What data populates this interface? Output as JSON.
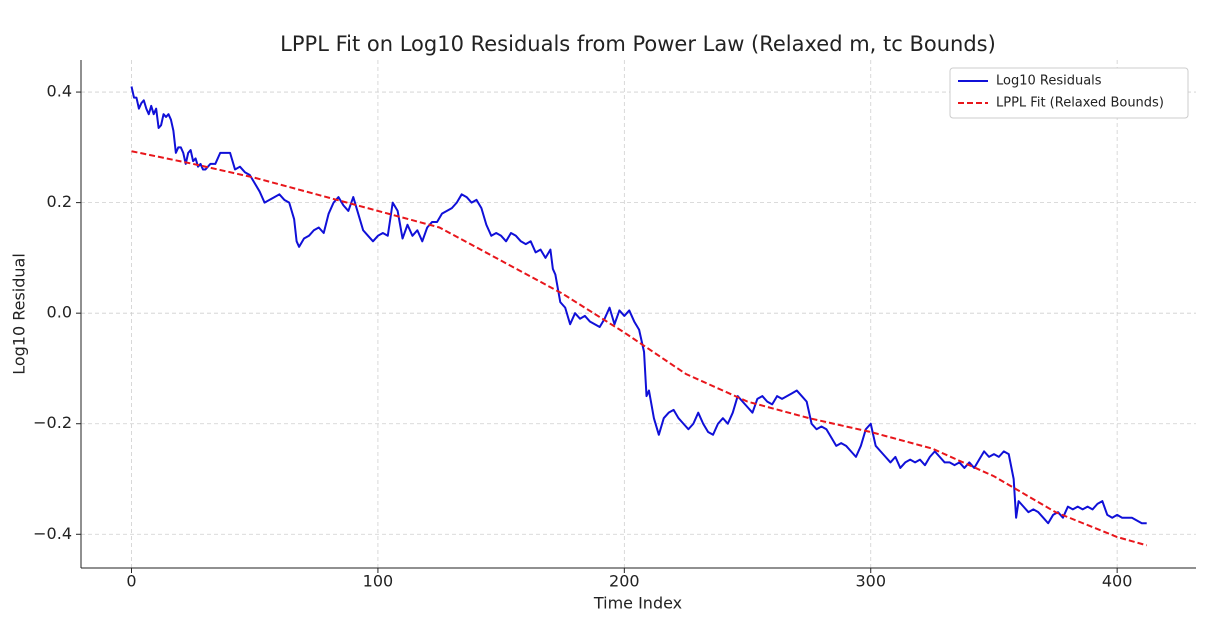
{
  "chart_data": {
    "type": "line",
    "title": "LPPL Fit on Log10 Residuals from Power Law (Relaxed m, tc Bounds)",
    "xlabel": "Time Index",
    "ylabel": "Log10 Residual",
    "xlim": [
      -20.5,
      432
    ],
    "ylim": [
      -0.461,
      0.458
    ],
    "xticks": [
      0,
      100,
      200,
      300,
      400
    ],
    "yticks": [
      {
        "value": -0.4,
        "label": "−0.4"
      },
      {
        "value": -0.2,
        "label": "−0.2"
      },
      {
        "value": 0,
        "label": "0.0"
      },
      0.2,
      0.4
    ],
    "grid": true,
    "legend": "upper right",
    "series": [
      {
        "name": "Log10 Residuals",
        "color": "#1010d8",
        "dashed": false,
        "x": [
          0,
          1,
          2,
          3,
          4,
          5,
          6,
          7,
          8,
          9,
          10,
          11,
          12,
          13,
          14,
          15,
          16,
          17,
          18,
          19,
          20,
          21,
          22,
          23,
          24,
          25,
          26,
          27,
          28,
          29,
          30,
          32,
          34,
          36,
          38,
          40,
          42,
          44,
          46,
          48,
          50,
          52,
          54,
          56,
          58,
          60,
          62,
          64,
          66,
          67,
          68,
          70,
          72,
          74,
          76,
          78,
          80,
          82,
          84,
          86,
          88,
          90,
          92,
          94,
          96,
          98,
          100,
          102,
          104,
          106,
          108,
          110,
          112,
          114,
          116,
          118,
          120,
          122,
          124,
          126,
          128,
          130,
          132,
          134,
          136,
          138,
          140,
          142,
          144,
          146,
          148,
          150,
          152,
          154,
          156,
          158,
          160,
          162,
          164,
          166,
          168,
          170,
          171,
          172,
          174,
          176,
          178,
          180,
          182,
          184,
          186,
          188,
          190,
          192,
          194,
          196,
          198,
          200,
          202,
          204,
          206,
          208,
          209,
          210,
          212,
          214,
          216,
          218,
          220,
          222,
          224,
          226,
          228,
          230,
          232,
          234,
          236,
          238,
          240,
          242,
          244,
          246,
          248,
          250,
          252,
          254,
          256,
          258,
          260,
          262,
          264,
          266,
          268,
          270,
          272,
          274,
          276,
          278,
          280,
          282,
          284,
          286,
          288,
          290,
          292,
          294,
          296,
          298,
          300,
          302,
          304,
          306,
          308,
          310,
          312,
          314,
          316,
          318,
          320,
          322,
          324,
          326,
          328,
          330,
          332,
          334,
          336,
          338,
          340,
          342,
          344,
          346,
          348,
          350,
          352,
          354,
          356,
          358,
          359,
          360,
          362,
          364,
          366,
          368,
          370,
          372,
          374,
          376,
          378,
          380,
          382,
          384,
          386,
          388,
          390,
          392,
          394,
          396,
          398,
          400,
          402,
          404,
          406,
          408,
          410,
          412
        ],
        "values": [
          0.41,
          0.39,
          0.39,
          0.37,
          0.38,
          0.385,
          0.37,
          0.36,
          0.375,
          0.36,
          0.37,
          0.335,
          0.34,
          0.36,
          0.355,
          0.36,
          0.35,
          0.33,
          0.29,
          0.3,
          0.3,
          0.29,
          0.27,
          0.29,
          0.295,
          0.275,
          0.28,
          0.265,
          0.27,
          0.26,
          0.26,
          0.27,
          0.27,
          0.29,
          0.29,
          0.29,
          0.26,
          0.265,
          0.255,
          0.25,
          0.235,
          0.22,
          0.2,
          0.205,
          0.21,
          0.215,
          0.205,
          0.2,
          0.17,
          0.13,
          0.12,
          0.135,
          0.14,
          0.15,
          0.155,
          0.145,
          0.18,
          0.2,
          0.21,
          0.195,
          0.185,
          0.21,
          0.18,
          0.15,
          0.14,
          0.13,
          0.14,
          0.145,
          0.14,
          0.2,
          0.185,
          0.135,
          0.16,
          0.14,
          0.15,
          0.13,
          0.155,
          0.165,
          0.165,
          0.18,
          0.185,
          0.19,
          0.2,
          0.215,
          0.21,
          0.2,
          0.205,
          0.19,
          0.16,
          0.14,
          0.145,
          0.14,
          0.13,
          0.145,
          0.14,
          0.13,
          0.125,
          0.13,
          0.11,
          0.115,
          0.1,
          0.115,
          0.08,
          0.07,
          0.02,
          0.01,
          -0.02,
          0.0,
          -0.01,
          -0.005,
          -0.015,
          -0.02,
          -0.025,
          -0.01,
          0.01,
          -0.02,
          0.005,
          -0.005,
          0.005,
          -0.015,
          -0.03,
          -0.07,
          -0.15,
          -0.14,
          -0.19,
          -0.22,
          -0.19,
          -0.18,
          -0.175,
          -0.19,
          -0.2,
          -0.21,
          -0.2,
          -0.18,
          -0.2,
          -0.215,
          -0.22,
          -0.2,
          -0.19,
          -0.2,
          -0.18,
          -0.15,
          -0.16,
          -0.17,
          -0.18,
          -0.155,
          -0.15,
          -0.16,
          -0.165,
          -0.15,
          -0.155,
          -0.15,
          -0.145,
          -0.14,
          -0.15,
          -0.16,
          -0.2,
          -0.21,
          -0.205,
          -0.21,
          -0.225,
          -0.24,
          -0.235,
          -0.24,
          -0.25,
          -0.26,
          -0.24,
          -0.21,
          -0.2,
          -0.24,
          -0.25,
          -0.26,
          -0.27,
          -0.26,
          -0.28,
          -0.27,
          -0.265,
          -0.27,
          -0.265,
          -0.275,
          -0.26,
          -0.25,
          -0.26,
          -0.27,
          -0.27,
          -0.275,
          -0.27,
          -0.28,
          -0.27,
          -0.28,
          -0.265,
          -0.25,
          -0.26,
          -0.255,
          -0.26,
          -0.25,
          -0.255,
          -0.3,
          -0.37,
          -0.34,
          -0.35,
          -0.36,
          -0.355,
          -0.36,
          -0.37,
          -0.38,
          -0.365,
          -0.36,
          -0.37,
          -0.35,
          -0.355,
          -0.35,
          -0.355,
          -0.35,
          -0.355,
          -0.345,
          -0.34,
          -0.365,
          -0.37,
          -0.365,
          -0.37,
          -0.37,
          -0.37,
          -0.375,
          -0.38,
          -0.38
        ]
      },
      {
        "name": "LPPL Fit (Relaxed Bounds)",
        "color": "#e8161b",
        "dashed": true,
        "x": [
          0,
          25,
          50,
          75,
          100,
          125,
          150,
          175,
          200,
          225,
          250,
          275,
          300,
          325,
          350,
          375,
          400,
          412
        ],
        "values": [
          0.293,
          0.27,
          0.245,
          0.215,
          0.185,
          0.155,
          0.095,
          0.035,
          -0.035,
          -0.11,
          -0.16,
          -0.19,
          -0.215,
          -0.245,
          -0.295,
          -0.36,
          -0.405,
          -0.42
        ]
      }
    ]
  }
}
